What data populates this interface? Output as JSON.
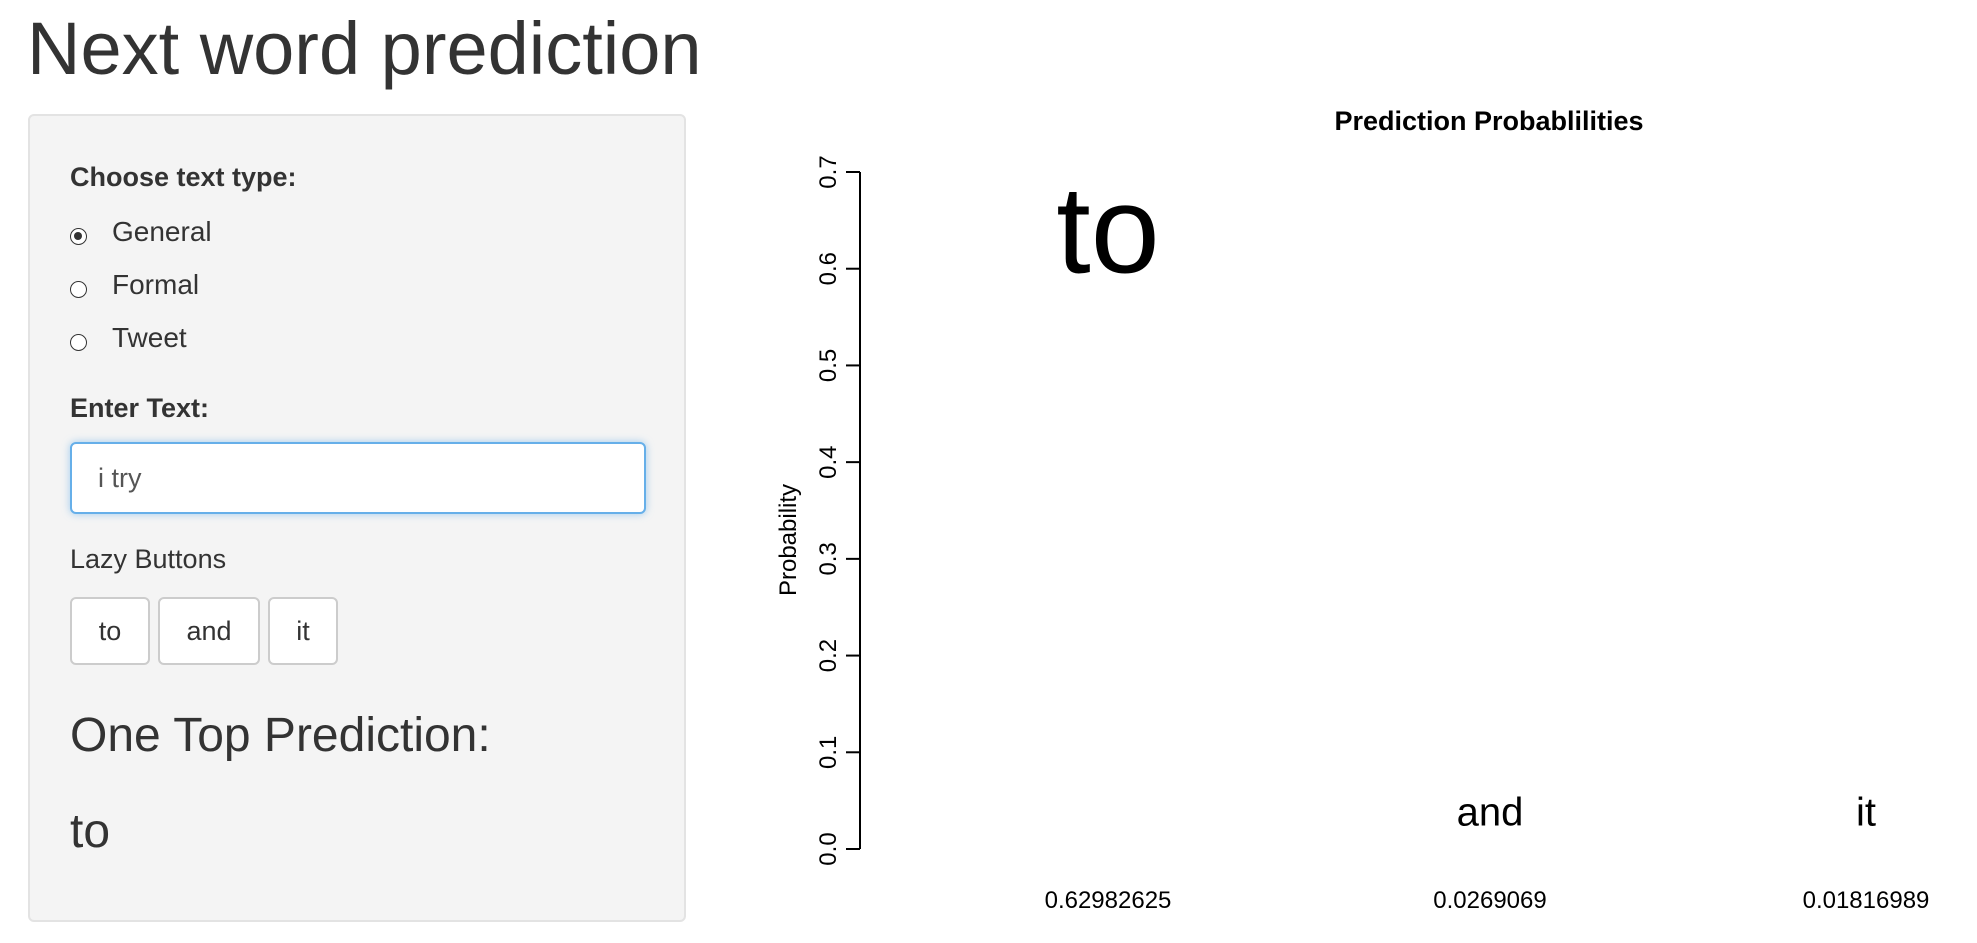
{
  "app": {
    "title": "Next word prediction"
  },
  "sidebar": {
    "text_type_label": "Choose text type:",
    "text_type_options": [
      "General",
      "Formal",
      "Tweet"
    ],
    "text_type_selected": "General",
    "input_label": "Enter Text:",
    "input_value": "i try ",
    "lazy_label": "Lazy Buttons",
    "lazy_buttons": [
      "to",
      "and",
      "it"
    ],
    "top_prediction_heading": "One Top Prediction:",
    "top_prediction_value": "to"
  },
  "colors": {
    "panel_bg": "#f4f4f4",
    "focus_border": "#66afe9",
    "text": "#333333"
  },
  "chart_data": {
    "type": "scatter",
    "title": "Prediction Probablilities",
    "xlabel": "",
    "ylabel": "Probability",
    "ylim": [
      0,
      0.7
    ],
    "yticks": [
      "0.0",
      "0.1",
      "0.2",
      "0.3",
      "0.4",
      "0.5",
      "0.6",
      "0.7"
    ],
    "points": [
      {
        "word": "to",
        "probability": 0.62982625,
        "label": "0.62982625"
      },
      {
        "word": "and",
        "probability": 0.0269069,
        "label": "0.0269069"
      },
      {
        "word": "it",
        "probability": 0.01816989,
        "label": "0.01816989"
      }
    ],
    "grid": false
  }
}
